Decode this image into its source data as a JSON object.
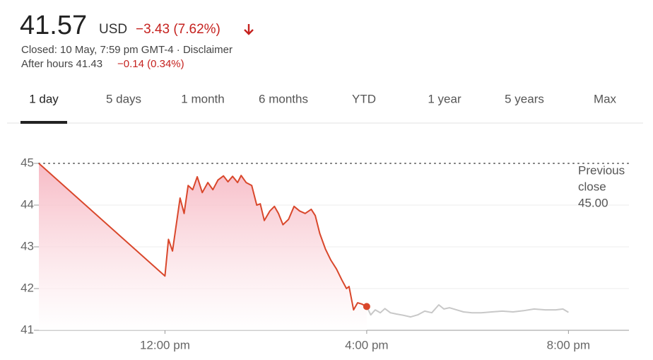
{
  "header": {
    "price": "41.57",
    "currency": "USD",
    "change": "−3.43 (7.62%)",
    "status": "Closed: 10 May, 7:59 pm GMT-4 · Disclaimer",
    "after_hours": "After hours 41.43",
    "after_hours_change": "−0.14 (0.34%)"
  },
  "tabs": {
    "items": [
      "1 day",
      "5 days",
      "1 month",
      "6 months",
      "YTD",
      "1 year",
      "5 years",
      "Max"
    ],
    "selected": 0
  },
  "chart_data": {
    "type": "line",
    "xlim": [
      9.5,
      21.2
    ],
    "xticks": [
      {
        "value": 12,
        "label": "12:00 pm"
      },
      {
        "value": 16,
        "label": "4:00 pm"
      },
      {
        "value": 20,
        "label": "8:00 pm"
      }
    ],
    "ylim": [
      41,
      45
    ],
    "yticks": [
      41,
      42,
      43,
      44,
      45
    ],
    "grid": true,
    "reference_line": {
      "value": 45,
      "label": [
        "Previous",
        "close",
        "45.00"
      ]
    },
    "series": [
      {
        "color": "#d9472b",
        "area": true,
        "marker_last": true,
        "x": [
          9.5,
          12.0,
          12.07,
          12.15,
          12.3,
          12.38,
          12.46,
          12.55,
          12.64,
          12.74,
          12.85,
          12.95,
          13.05,
          13.16,
          13.25,
          13.34,
          13.44,
          13.51,
          13.61,
          13.72,
          13.82,
          13.89,
          13.97,
          14.08,
          14.17,
          14.25,
          14.34,
          14.45,
          14.56,
          14.67,
          14.78,
          14.9,
          14.98,
          15.07,
          15.18,
          15.29,
          15.4,
          15.51,
          15.6,
          15.65,
          15.74,
          15.82,
          15.9,
          16.0
        ],
        "values": [
          45.0,
          42.3,
          43.18,
          42.9,
          44.17,
          43.8,
          44.47,
          44.37,
          44.68,
          44.3,
          44.54,
          44.37,
          44.6,
          44.7,
          44.56,
          44.69,
          44.54,
          44.71,
          44.54,
          44.47,
          44.0,
          44.03,
          43.63,
          43.86,
          43.97,
          43.8,
          43.53,
          43.66,
          43.97,
          43.86,
          43.8,
          43.9,
          43.75,
          43.32,
          42.95,
          42.68,
          42.47,
          42.2,
          42.0,
          42.05,
          41.49,
          41.66,
          41.63,
          41.57
        ]
      },
      {
        "color": "#c8c8c8",
        "x": [
          16.0,
          16.08,
          16.17,
          16.27,
          16.36,
          16.47,
          16.59,
          16.73,
          16.87,
          17.01,
          17.15,
          17.29,
          17.43,
          17.53,
          17.64,
          17.78,
          17.92,
          18.09,
          18.27,
          18.48,
          18.69,
          18.9,
          19.11,
          19.32,
          19.54,
          19.75,
          19.89,
          20.0
        ],
        "values": [
          41.57,
          41.37,
          41.49,
          41.42,
          41.52,
          41.42,
          41.39,
          41.36,
          41.32,
          41.37,
          41.46,
          41.42,
          41.61,
          41.51,
          41.54,
          41.49,
          41.44,
          41.42,
          41.42,
          41.44,
          41.46,
          41.44,
          41.47,
          41.51,
          41.49,
          41.49,
          41.51,
          41.43
        ]
      }
    ]
  }
}
